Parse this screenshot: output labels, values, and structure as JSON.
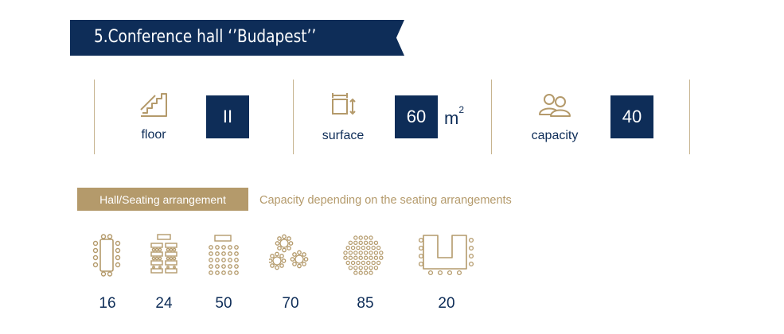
{
  "title": "5.Conference hall ‘’Budapest’’",
  "stats": {
    "floor": {
      "label": "floor",
      "value": "II",
      "icon": "stairs-icon"
    },
    "surface": {
      "label": "surface",
      "value": "60",
      "unit": "m",
      "unit_sup": "2",
      "icon": "resize-icon"
    },
    "capacity": {
      "label": "capacity",
      "value": "40",
      "icon": "people-icon"
    }
  },
  "arrangement": {
    "heading": "Hall/Seating arrangement",
    "note": "Capacity depending on the seating arrangements",
    "layouts": [
      {
        "icon": "boardroom-icon",
        "count": "16"
      },
      {
        "icon": "classroom-icon",
        "count": "24"
      },
      {
        "icon": "theatre-icon",
        "count": "50"
      },
      {
        "icon": "banquet-icon",
        "count": "70"
      },
      {
        "icon": "cocktail-icon",
        "count": "85"
      },
      {
        "icon": "u-shape-icon",
        "count": "20"
      }
    ]
  },
  "colors": {
    "navy": "#0e2d58",
    "gold": "#b49a6b",
    "line": "#c7b48f"
  }
}
